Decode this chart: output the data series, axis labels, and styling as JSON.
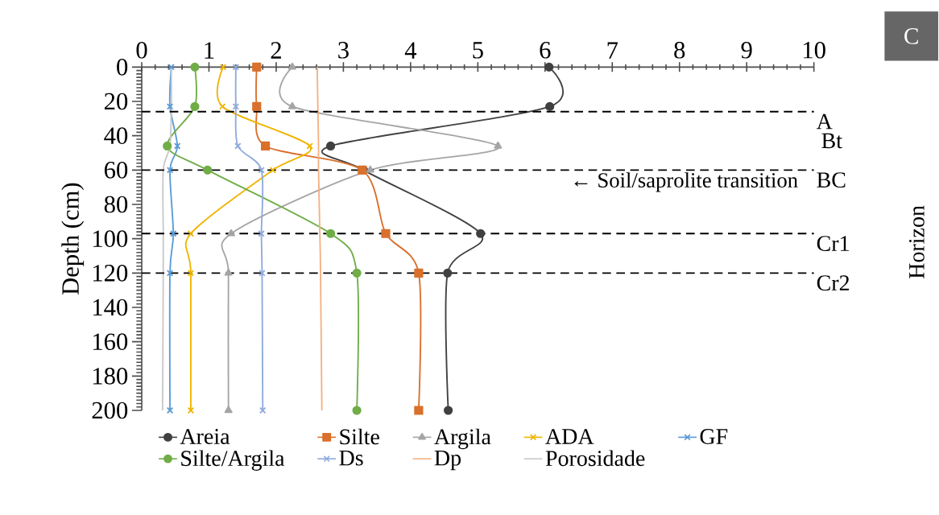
{
  "chart_data": {
    "type": "line",
    "ylabel": "Depth (cm)",
    "y2label": "Horizon",
    "series": [
      {
        "name": "Areia",
        "color": "#404040",
        "marker": "circle",
        "x": [
          6.06,
          6.07,
          2.81,
          3.3,
          5.04,
          4.55,
          4.56
        ],
        "values": [
          0,
          23,
          46,
          60,
          97,
          120,
          200
        ]
      },
      {
        "name": "Silte",
        "color": "#d9702c",
        "marker": "square",
        "x": [
          1.71,
          1.71,
          1.84,
          3.28,
          3.63,
          4.12,
          4.12
        ],
        "values": [
          0,
          23,
          46,
          60,
          97,
          120,
          200
        ]
      },
      {
        "name": "Argila",
        "color": "#a5a5a5",
        "marker": "triangle",
        "x": [
          2.24,
          2.24,
          5.3,
          3.4,
          1.33,
          1.29,
          1.29
        ],
        "values": [
          0,
          23,
          46,
          60,
          97,
          120,
          200
        ]
      },
      {
        "name": "ADA",
        "color": "#f0b400",
        "marker": "cross",
        "x": [
          1.21,
          1.2,
          2.5,
          1.95,
          0.73,
          0.73,
          0.73
        ],
        "values": [
          0,
          23,
          46,
          60,
          97,
          120,
          200
        ]
      },
      {
        "name": "GF",
        "color": "#5b9bd5",
        "marker": "cross",
        "x": [
          0.44,
          0.42,
          0.53,
          0.42,
          0.47,
          0.42,
          0.42
        ],
        "values": [
          0,
          23,
          46,
          60,
          97,
          120,
          200
        ]
      },
      {
        "name": "Silte/Argila",
        "color": "#70ad47",
        "marker": "circle",
        "x": [
          0.79,
          0.79,
          0.38,
          0.98,
          2.81,
          3.2,
          3.2
        ],
        "values": [
          0,
          23,
          46,
          60,
          97,
          120,
          200
        ]
      },
      {
        "name": "Ds",
        "color": "#8faadc",
        "marker": "cross",
        "x": [
          1.4,
          1.4,
          1.43,
          1.78,
          1.78,
          1.79,
          1.8
        ],
        "values": [
          0,
          23,
          46,
          60,
          97,
          120,
          200
        ]
      },
      {
        "name": "Dp",
        "color": "#f4b183",
        "marker": "none",
        "x": [
          2.61,
          2.62,
          2.63,
          2.63,
          2.65,
          2.66,
          2.68
        ],
        "values": [
          0,
          23,
          46,
          60,
          97,
          120,
          200
        ]
      },
      {
        "name": "Porosidade",
        "color": "#c9c9c9",
        "marker": "none",
        "x": [
          0.44,
          0.44,
          0.42,
          0.32,
          0.32,
          0.32,
          0.31
        ],
        "values": [
          0,
          23,
          46,
          60,
          97,
          120,
          200
        ]
      }
    ],
    "xlim": [
      0,
      10
    ],
    "xticks": [
      0,
      1,
      2,
      3,
      4,
      5,
      6,
      7,
      8,
      9,
      10
    ],
    "ylim": [
      200,
      0
    ],
    "yticks": [
      0,
      20,
      40,
      60,
      80,
      100,
      120,
      140,
      160,
      180,
      200
    ],
    "ref_lines": [
      {
        "axis": "y",
        "value": 26,
        "label": "A",
        "color": "#000000",
        "line_style": "dashed"
      },
      {
        "axis": "y",
        "value": 60,
        "label": "BC",
        "color": "#000000",
        "line_style": "dashed"
      },
      {
        "axis": "y",
        "value": 97,
        "label": "Cr1",
        "color": "#000000",
        "line_style": "dashed"
      },
      {
        "axis": "y",
        "value": 120,
        "label": "Cr2",
        "color": "#000000",
        "line_style": "dashed"
      }
    ],
    "annotations": [
      "Bt",
      {
        "text": "← Soil/saprolite transition",
        "x": 9.8,
        "y": 60
      },
      "C"
    ],
    "legend": "bottom",
    "line_style": "solid"
  }
}
